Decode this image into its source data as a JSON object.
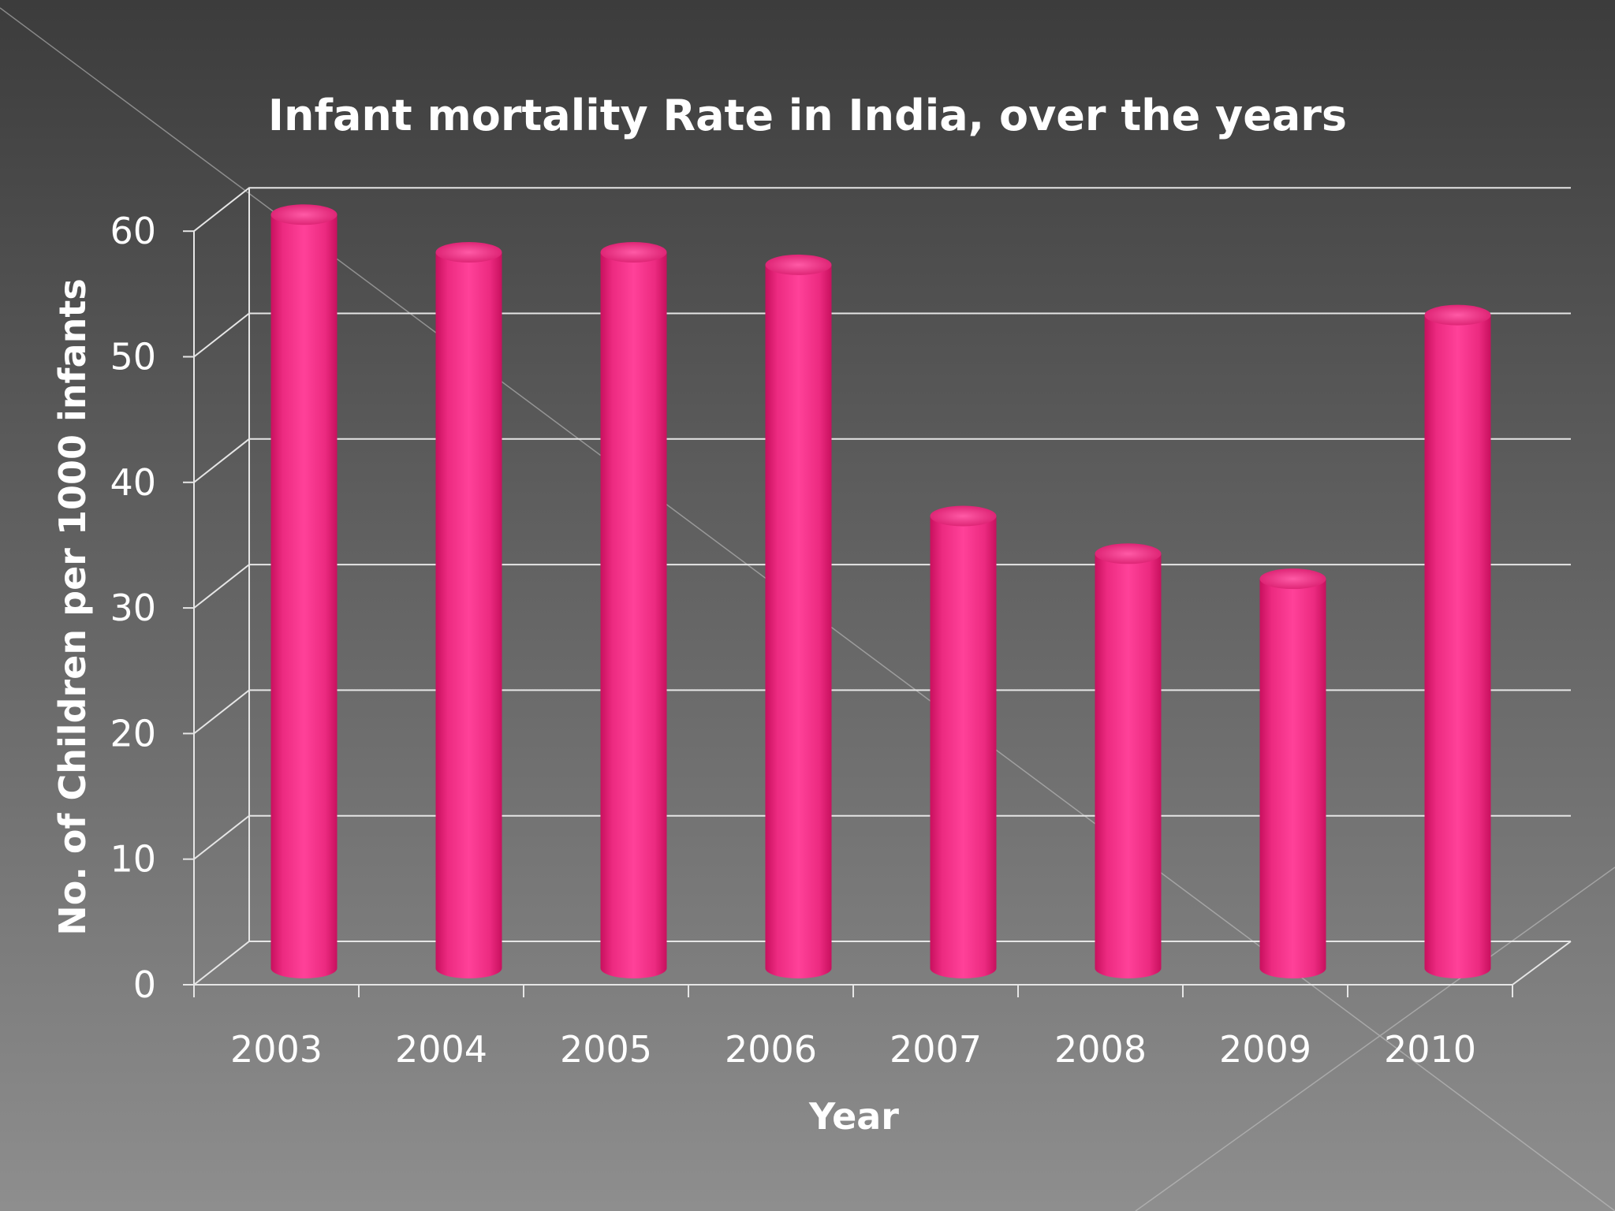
{
  "chart_data": {
    "type": "bar",
    "title": "Infant mortality Rate in India, over the years",
    "xlabel": "Year",
    "ylabel": "No. of Children per 1000 infants",
    "categories": [
      "2003",
      "2004",
      "2005",
      "2006",
      "2007",
      "2008",
      "2009",
      "2010"
    ],
    "values": [
      60,
      57,
      57,
      56,
      36,
      33,
      31,
      52
    ],
    "ylim": [
      0,
      60
    ],
    "yticks": [
      "0",
      "10",
      "20",
      "30",
      "40",
      "50",
      "60"
    ],
    "grid": true,
    "legend": "none",
    "bar_color": "#ff3d91",
    "bar_shape": "3d-cylinder",
    "background_colors": [
      "#3c3c3c",
      "#8e8e8e"
    ]
  }
}
